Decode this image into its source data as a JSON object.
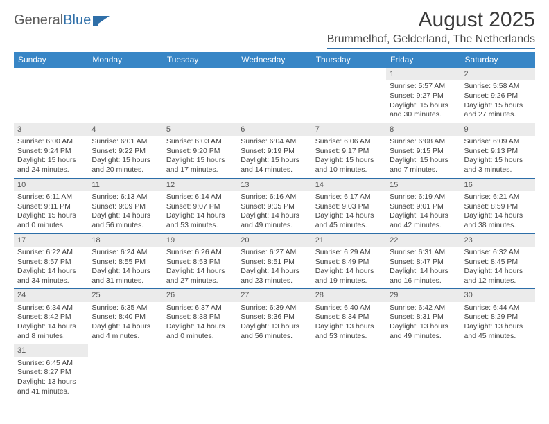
{
  "logo": {
    "text1": "General",
    "text2": "Blue"
  },
  "title": "August 2025",
  "location": "Brummelhof, Gelderland, The Netherlands",
  "header_bg": "#3886c6",
  "header_fg": "#ffffff",
  "daynum_bg": "#ebebeb",
  "border_color": "#2d6ea8",
  "dayHeaders": [
    "Sunday",
    "Monday",
    "Tuesday",
    "Wednesday",
    "Thursday",
    "Friday",
    "Saturday"
  ],
  "weeks": [
    [
      {
        "n": "",
        "sr": "",
        "ss": "",
        "dl": ""
      },
      {
        "n": "",
        "sr": "",
        "ss": "",
        "dl": ""
      },
      {
        "n": "",
        "sr": "",
        "ss": "",
        "dl": ""
      },
      {
        "n": "",
        "sr": "",
        "ss": "",
        "dl": ""
      },
      {
        "n": "",
        "sr": "",
        "ss": "",
        "dl": ""
      },
      {
        "n": "1",
        "sr": "Sunrise: 5:57 AM",
        "ss": "Sunset: 9:27 PM",
        "dl": "Daylight: 15 hours and 30 minutes."
      },
      {
        "n": "2",
        "sr": "Sunrise: 5:58 AM",
        "ss": "Sunset: 9:26 PM",
        "dl": "Daylight: 15 hours and 27 minutes."
      }
    ],
    [
      {
        "n": "3",
        "sr": "Sunrise: 6:00 AM",
        "ss": "Sunset: 9:24 PM",
        "dl": "Daylight: 15 hours and 24 minutes."
      },
      {
        "n": "4",
        "sr": "Sunrise: 6:01 AM",
        "ss": "Sunset: 9:22 PM",
        "dl": "Daylight: 15 hours and 20 minutes."
      },
      {
        "n": "5",
        "sr": "Sunrise: 6:03 AM",
        "ss": "Sunset: 9:20 PM",
        "dl": "Daylight: 15 hours and 17 minutes."
      },
      {
        "n": "6",
        "sr": "Sunrise: 6:04 AM",
        "ss": "Sunset: 9:19 PM",
        "dl": "Daylight: 15 hours and 14 minutes."
      },
      {
        "n": "7",
        "sr": "Sunrise: 6:06 AM",
        "ss": "Sunset: 9:17 PM",
        "dl": "Daylight: 15 hours and 10 minutes."
      },
      {
        "n": "8",
        "sr": "Sunrise: 6:08 AM",
        "ss": "Sunset: 9:15 PM",
        "dl": "Daylight: 15 hours and 7 minutes."
      },
      {
        "n": "9",
        "sr": "Sunrise: 6:09 AM",
        "ss": "Sunset: 9:13 PM",
        "dl": "Daylight: 15 hours and 3 minutes."
      }
    ],
    [
      {
        "n": "10",
        "sr": "Sunrise: 6:11 AM",
        "ss": "Sunset: 9:11 PM",
        "dl": "Daylight: 15 hours and 0 minutes."
      },
      {
        "n": "11",
        "sr": "Sunrise: 6:13 AM",
        "ss": "Sunset: 9:09 PM",
        "dl": "Daylight: 14 hours and 56 minutes."
      },
      {
        "n": "12",
        "sr": "Sunrise: 6:14 AM",
        "ss": "Sunset: 9:07 PM",
        "dl": "Daylight: 14 hours and 53 minutes."
      },
      {
        "n": "13",
        "sr": "Sunrise: 6:16 AM",
        "ss": "Sunset: 9:05 PM",
        "dl": "Daylight: 14 hours and 49 minutes."
      },
      {
        "n": "14",
        "sr": "Sunrise: 6:17 AM",
        "ss": "Sunset: 9:03 PM",
        "dl": "Daylight: 14 hours and 45 minutes."
      },
      {
        "n": "15",
        "sr": "Sunrise: 6:19 AM",
        "ss": "Sunset: 9:01 PM",
        "dl": "Daylight: 14 hours and 42 minutes."
      },
      {
        "n": "16",
        "sr": "Sunrise: 6:21 AM",
        "ss": "Sunset: 8:59 PM",
        "dl": "Daylight: 14 hours and 38 minutes."
      }
    ],
    [
      {
        "n": "17",
        "sr": "Sunrise: 6:22 AM",
        "ss": "Sunset: 8:57 PM",
        "dl": "Daylight: 14 hours and 34 minutes."
      },
      {
        "n": "18",
        "sr": "Sunrise: 6:24 AM",
        "ss": "Sunset: 8:55 PM",
        "dl": "Daylight: 14 hours and 31 minutes."
      },
      {
        "n": "19",
        "sr": "Sunrise: 6:26 AM",
        "ss": "Sunset: 8:53 PM",
        "dl": "Daylight: 14 hours and 27 minutes."
      },
      {
        "n": "20",
        "sr": "Sunrise: 6:27 AM",
        "ss": "Sunset: 8:51 PM",
        "dl": "Daylight: 14 hours and 23 minutes."
      },
      {
        "n": "21",
        "sr": "Sunrise: 6:29 AM",
        "ss": "Sunset: 8:49 PM",
        "dl": "Daylight: 14 hours and 19 minutes."
      },
      {
        "n": "22",
        "sr": "Sunrise: 6:31 AM",
        "ss": "Sunset: 8:47 PM",
        "dl": "Daylight: 14 hours and 16 minutes."
      },
      {
        "n": "23",
        "sr": "Sunrise: 6:32 AM",
        "ss": "Sunset: 8:45 PM",
        "dl": "Daylight: 14 hours and 12 minutes."
      }
    ],
    [
      {
        "n": "24",
        "sr": "Sunrise: 6:34 AM",
        "ss": "Sunset: 8:42 PM",
        "dl": "Daylight: 14 hours and 8 minutes."
      },
      {
        "n": "25",
        "sr": "Sunrise: 6:35 AM",
        "ss": "Sunset: 8:40 PM",
        "dl": "Daylight: 14 hours and 4 minutes."
      },
      {
        "n": "26",
        "sr": "Sunrise: 6:37 AM",
        "ss": "Sunset: 8:38 PM",
        "dl": "Daylight: 14 hours and 0 minutes."
      },
      {
        "n": "27",
        "sr": "Sunrise: 6:39 AM",
        "ss": "Sunset: 8:36 PM",
        "dl": "Daylight: 13 hours and 56 minutes."
      },
      {
        "n": "28",
        "sr": "Sunrise: 6:40 AM",
        "ss": "Sunset: 8:34 PM",
        "dl": "Daylight: 13 hours and 53 minutes."
      },
      {
        "n": "29",
        "sr": "Sunrise: 6:42 AM",
        "ss": "Sunset: 8:31 PM",
        "dl": "Daylight: 13 hours and 49 minutes."
      },
      {
        "n": "30",
        "sr": "Sunrise: 6:44 AM",
        "ss": "Sunset: 8:29 PM",
        "dl": "Daylight: 13 hours and 45 minutes."
      }
    ],
    [
      {
        "n": "31",
        "sr": "Sunrise: 6:45 AM",
        "ss": "Sunset: 8:27 PM",
        "dl": "Daylight: 13 hours and 41 minutes."
      },
      {
        "n": "",
        "sr": "",
        "ss": "",
        "dl": ""
      },
      {
        "n": "",
        "sr": "",
        "ss": "",
        "dl": ""
      },
      {
        "n": "",
        "sr": "",
        "ss": "",
        "dl": ""
      },
      {
        "n": "",
        "sr": "",
        "ss": "",
        "dl": ""
      },
      {
        "n": "",
        "sr": "",
        "ss": "",
        "dl": ""
      },
      {
        "n": "",
        "sr": "",
        "ss": "",
        "dl": ""
      }
    ]
  ]
}
